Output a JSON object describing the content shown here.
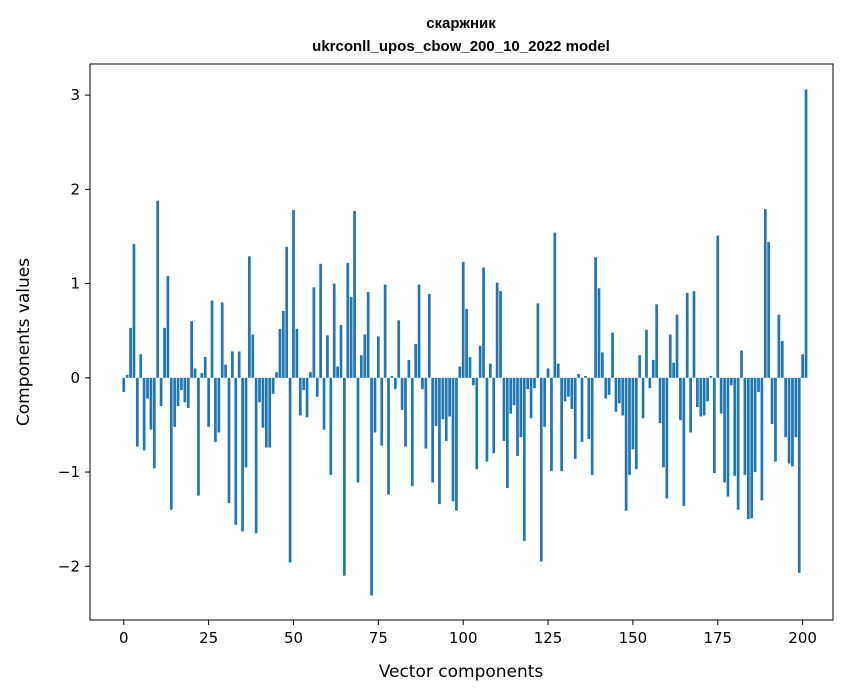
{
  "chart_data": {
    "type": "bar",
    "title": "скаржник",
    "subtitle": "ukrconll_upos_cbow_200_10_2022 model",
    "xlabel": "Vector components",
    "ylabel": "Components values",
    "xlim": [
      -9.95,
      208.95
    ],
    "ylim": [
      -2.57,
      3.33
    ],
    "xticks": [
      0,
      25,
      50,
      75,
      100,
      125,
      150,
      175,
      200
    ],
    "yticks": [
      -2,
      -1,
      0,
      1,
      2,
      3
    ],
    "xtick_labels": [
      "0",
      "25",
      "50",
      "75",
      "100",
      "125",
      "150",
      "175",
      "200"
    ],
    "ytick_labels": [
      "−2",
      "−1",
      "0",
      "1",
      "2",
      "3"
    ],
    "grid": false,
    "bar_color": "#1f77b4",
    "values": [
      -0.15,
      0.03,
      0.53,
      1.42,
      -0.73,
      0.25,
      -0.77,
      -0.22,
      -0.55,
      -0.96,
      1.88,
      -0.3,
      0.53,
      1.08,
      -1.4,
      -0.52,
      -0.3,
      -0.13,
      -0.26,
      -0.32,
      0.6,
      0.1,
      -1.25,
      0.05,
      0.22,
      -0.52,
      0.82,
      -0.68,
      -0.58,
      0.8,
      0.14,
      -1.33,
      0.28,
      -1.56,
      0.28,
      -1.63,
      -0.95,
      1.29,
      0.46,
      -1.65,
      -0.26,
      -0.53,
      -0.74,
      -0.74,
      -0.17,
      0.06,
      0.52,
      0.71,
      1.39,
      -1.96,
      1.78,
      0.52,
      -0.4,
      -0.13,
      -0.42,
      0.06,
      0.96,
      -0.2,
      1.21,
      -0.55,
      0.45,
      -1.03,
      1.0,
      0.12,
      0.56,
      -2.1,
      1.22,
      0.86,
      1.77,
      -1.11,
      0.24,
      0.46,
      0.91,
      -2.31,
      -0.58,
      0.44,
      -0.72,
      0.99,
      -1.24,
      0.02,
      -0.12,
      0.61,
      -0.34,
      -0.73,
      0.19,
      -1.15,
      0.36,
      0.99,
      -0.12,
      -0.75,
      0.89,
      -1.11,
      -0.51,
      -1.34,
      -0.44,
      -0.67,
      -0.41,
      -1.31,
      -1.41,
      0.12,
      1.23,
      0.73,
      0.22,
      -0.08,
      -0.97,
      0.34,
      1.17,
      -0.89,
      0.15,
      -0.8,
      1.01,
      0.92,
      -0.67,
      -1.17,
      -0.38,
      -0.29,
      -0.83,
      -0.63,
      -1.73,
      -0.12,
      -0.43,
      -0.11,
      0.79,
      -1.95,
      -0.52,
      0.1,
      -0.99,
      1.54,
      0.15,
      -0.99,
      -0.25,
      -0.2,
      -0.33,
      -0.86,
      0.04,
      -0.68,
      0.02,
      -0.65,
      -1.03,
      1.28,
      0.95,
      0.27,
      -0.22,
      -0.18,
      0.48,
      -0.36,
      -0.27,
      -0.4,
      -1.41,
      -1.03,
      -0.76,
      -0.97,
      0.24,
      -0.43,
      0.51,
      -0.11,
      0.19,
      0.78,
      -0.48,
      -0.95,
      -1.28,
      0.46,
      0.16,
      0.67,
      -0.45,
      -1.36,
      0.9,
      -0.58,
      0.92,
      -0.31,
      -0.41,
      -0.4,
      -0.25,
      0.02,
      -1.01,
      1.51,
      -0.38,
      -1.11,
      -1.26,
      -0.08,
      -1.04,
      -1.4,
      0.29,
      -1.03,
      -1.5,
      -1.49,
      -1.0,
      -0.15,
      -1.3,
      1.79,
      1.44,
      -0.49,
      -0.89,
      0.67,
      0.39,
      -0.63,
      -0.91,
      -0.94,
      -0.63,
      -2.07,
      0.25,
      3.06
    ]
  }
}
